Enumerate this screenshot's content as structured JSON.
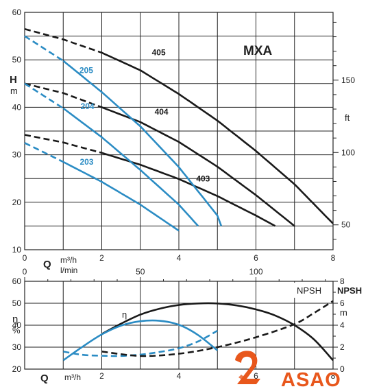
{
  "chart_data": [
    {
      "type": "line",
      "title": "MXA",
      "x_axis": {
        "label": "Q",
        "unit": "m³/h",
        "range": [
          0,
          8
        ],
        "ticks": [
          0,
          2,
          4,
          6,
          8
        ]
      },
      "x_axis_secondary": {
        "unit": "l/min",
        "ticks": [
          0,
          50,
          100
        ]
      },
      "y_axis": {
        "label": "H",
        "unit": "m",
        "range": [
          10,
          60
        ],
        "ticks": [
          10,
          20,
          30,
          40,
          50,
          60
        ]
      },
      "y_axis_secondary": {
        "unit": "ft",
        "ticks": [
          50,
          100,
          150
        ]
      },
      "series": [
        {
          "name": "405",
          "color": "#1a1a1a",
          "dashed_x": [
            0,
            2
          ],
          "x": [
            0,
            1,
            2,
            3,
            4,
            5,
            6,
            7,
            8
          ],
          "y": [
            56.5,
            54.3,
            51.5,
            47.8,
            42.8,
            37.2,
            30.8,
            23.8,
            15.5
          ]
        },
        {
          "name": "404",
          "color": "#1a1a1a",
          "dashed_x": [
            0,
            2
          ],
          "x": [
            0,
            1,
            2,
            3,
            4,
            5,
            6,
            7
          ],
          "y": [
            45.0,
            43.0,
            40.0,
            36.9,
            32.7,
            27.5,
            21.5,
            15.0
          ]
        },
        {
          "name": "403",
          "color": "#1a1a1a",
          "dashed_x": [
            0,
            2
          ],
          "x": [
            0,
            1,
            2,
            3,
            4,
            5,
            6,
            6.5
          ],
          "y": [
            34.2,
            32.6,
            30.4,
            27.9,
            24.9,
            21.3,
            17.2,
            15.0
          ]
        },
        {
          "name": "205",
          "color": "#2b8cc4",
          "dashed_x": [
            0,
            1
          ],
          "x": [
            0,
            1,
            2,
            3,
            4,
            5,
            5.1
          ],
          "y": [
            55.0,
            49.8,
            43.2,
            36.0,
            27.4,
            17.2,
            15.0
          ]
        },
        {
          "name": "204",
          "color": "#2b8cc4",
          "dashed_x": [
            0,
            1
          ],
          "x": [
            0,
            1,
            2,
            3,
            4,
            4.5
          ],
          "y": [
            45.0,
            39.8,
            33.7,
            26.8,
            19.5,
            15.0
          ]
        },
        {
          "name": "203",
          "color": "#2b8cc4",
          "dashed_x": [
            0,
            1
          ],
          "x": [
            0,
            1,
            2,
            3,
            4
          ],
          "y": [
            32.5,
            28.5,
            24.3,
            19.5,
            14.0
          ]
        }
      ],
      "grid": true,
      "legend": "none"
    },
    {
      "type": "line",
      "title": "",
      "x_axis": {
        "label": "Q",
        "unit": "m³/h",
        "range": [
          0,
          8
        ],
        "ticks": [
          2,
          4,
          6,
          8
        ]
      },
      "y_axis": {
        "label": "η",
        "unit": "%",
        "range": [
          20,
          60
        ],
        "ticks": [
          20,
          30,
          40,
          50,
          60
        ]
      },
      "y_axis_secondary": {
        "label": "NPSH",
        "title": "NPSH",
        "unit": "m",
        "range": [
          0,
          8
        ],
        "ticks": [
          0,
          2,
          4,
          6,
          8
        ]
      },
      "series": [
        {
          "name": "η",
          "color": "#1a1a1a",
          "axis": "left",
          "x": [
            2,
            2.5,
            3,
            3.5,
            4,
            4.5,
            5,
            5.5,
            6,
            6.5,
            7,
            7.5,
            8
          ],
          "y": [
            36,
            40.7,
            44.8,
            47.5,
            49.2,
            49.9,
            49.9,
            49.0,
            47.2,
            44.4,
            40.0,
            33.6,
            24.0
          ]
        },
        {
          "name": "",
          "color": "#2b8cc4",
          "axis": "left",
          "x": [
            1,
            1.5,
            2,
            2.5,
            3,
            3.5,
            4,
            4.5,
            5
          ],
          "y": [
            24.0,
            30.2,
            35.8,
            39.8,
            41.8,
            42.0,
            40.2,
            35.5,
            28.5
          ]
        },
        {
          "name": "",
          "color": "#2b8cc4",
          "axis": "left",
          "dashed": true,
          "x": [
            1,
            1.5,
            2,
            2.5,
            3,
            3.5,
            4,
            4.5,
            5
          ],
          "y": [
            28.0,
            26.5,
            26.1,
            26.0,
            26.6,
            27.8,
            29.5,
            32.6,
            37.5
          ]
        },
        {
          "name": "NPSH",
          "color": "#1a1a1a",
          "axis": "right",
          "dashed": true,
          "x": [
            2,
            3,
            4,
            5,
            6,
            7,
            7.5,
            8
          ],
          "y": [
            1.6,
            1.2,
            1.4,
            2.0,
            2.9,
            4.1,
            5.1,
            6.2
          ]
        }
      ],
      "grid": true,
      "legend": "none"
    }
  ],
  "labels": {
    "title": "MXA",
    "top_ylabel": "H",
    "top_yunit": "m",
    "ft_unit": "ft",
    "q_letter": "Q",
    "q_unit": "m³/h",
    "lmin_unit": "l/min",
    "eta_symbol": "η",
    "eta_unit": "%",
    "eta_curve": "η",
    "npsh_box": "NPSH",
    "npsh_axis": "NPSH",
    "npsh_unit": "m",
    "bottom_q_letter": "Q",
    "bottom_q_unit": "m³/h"
  },
  "brand": {
    "name": "ASAO",
    "color": "#e8571c"
  }
}
